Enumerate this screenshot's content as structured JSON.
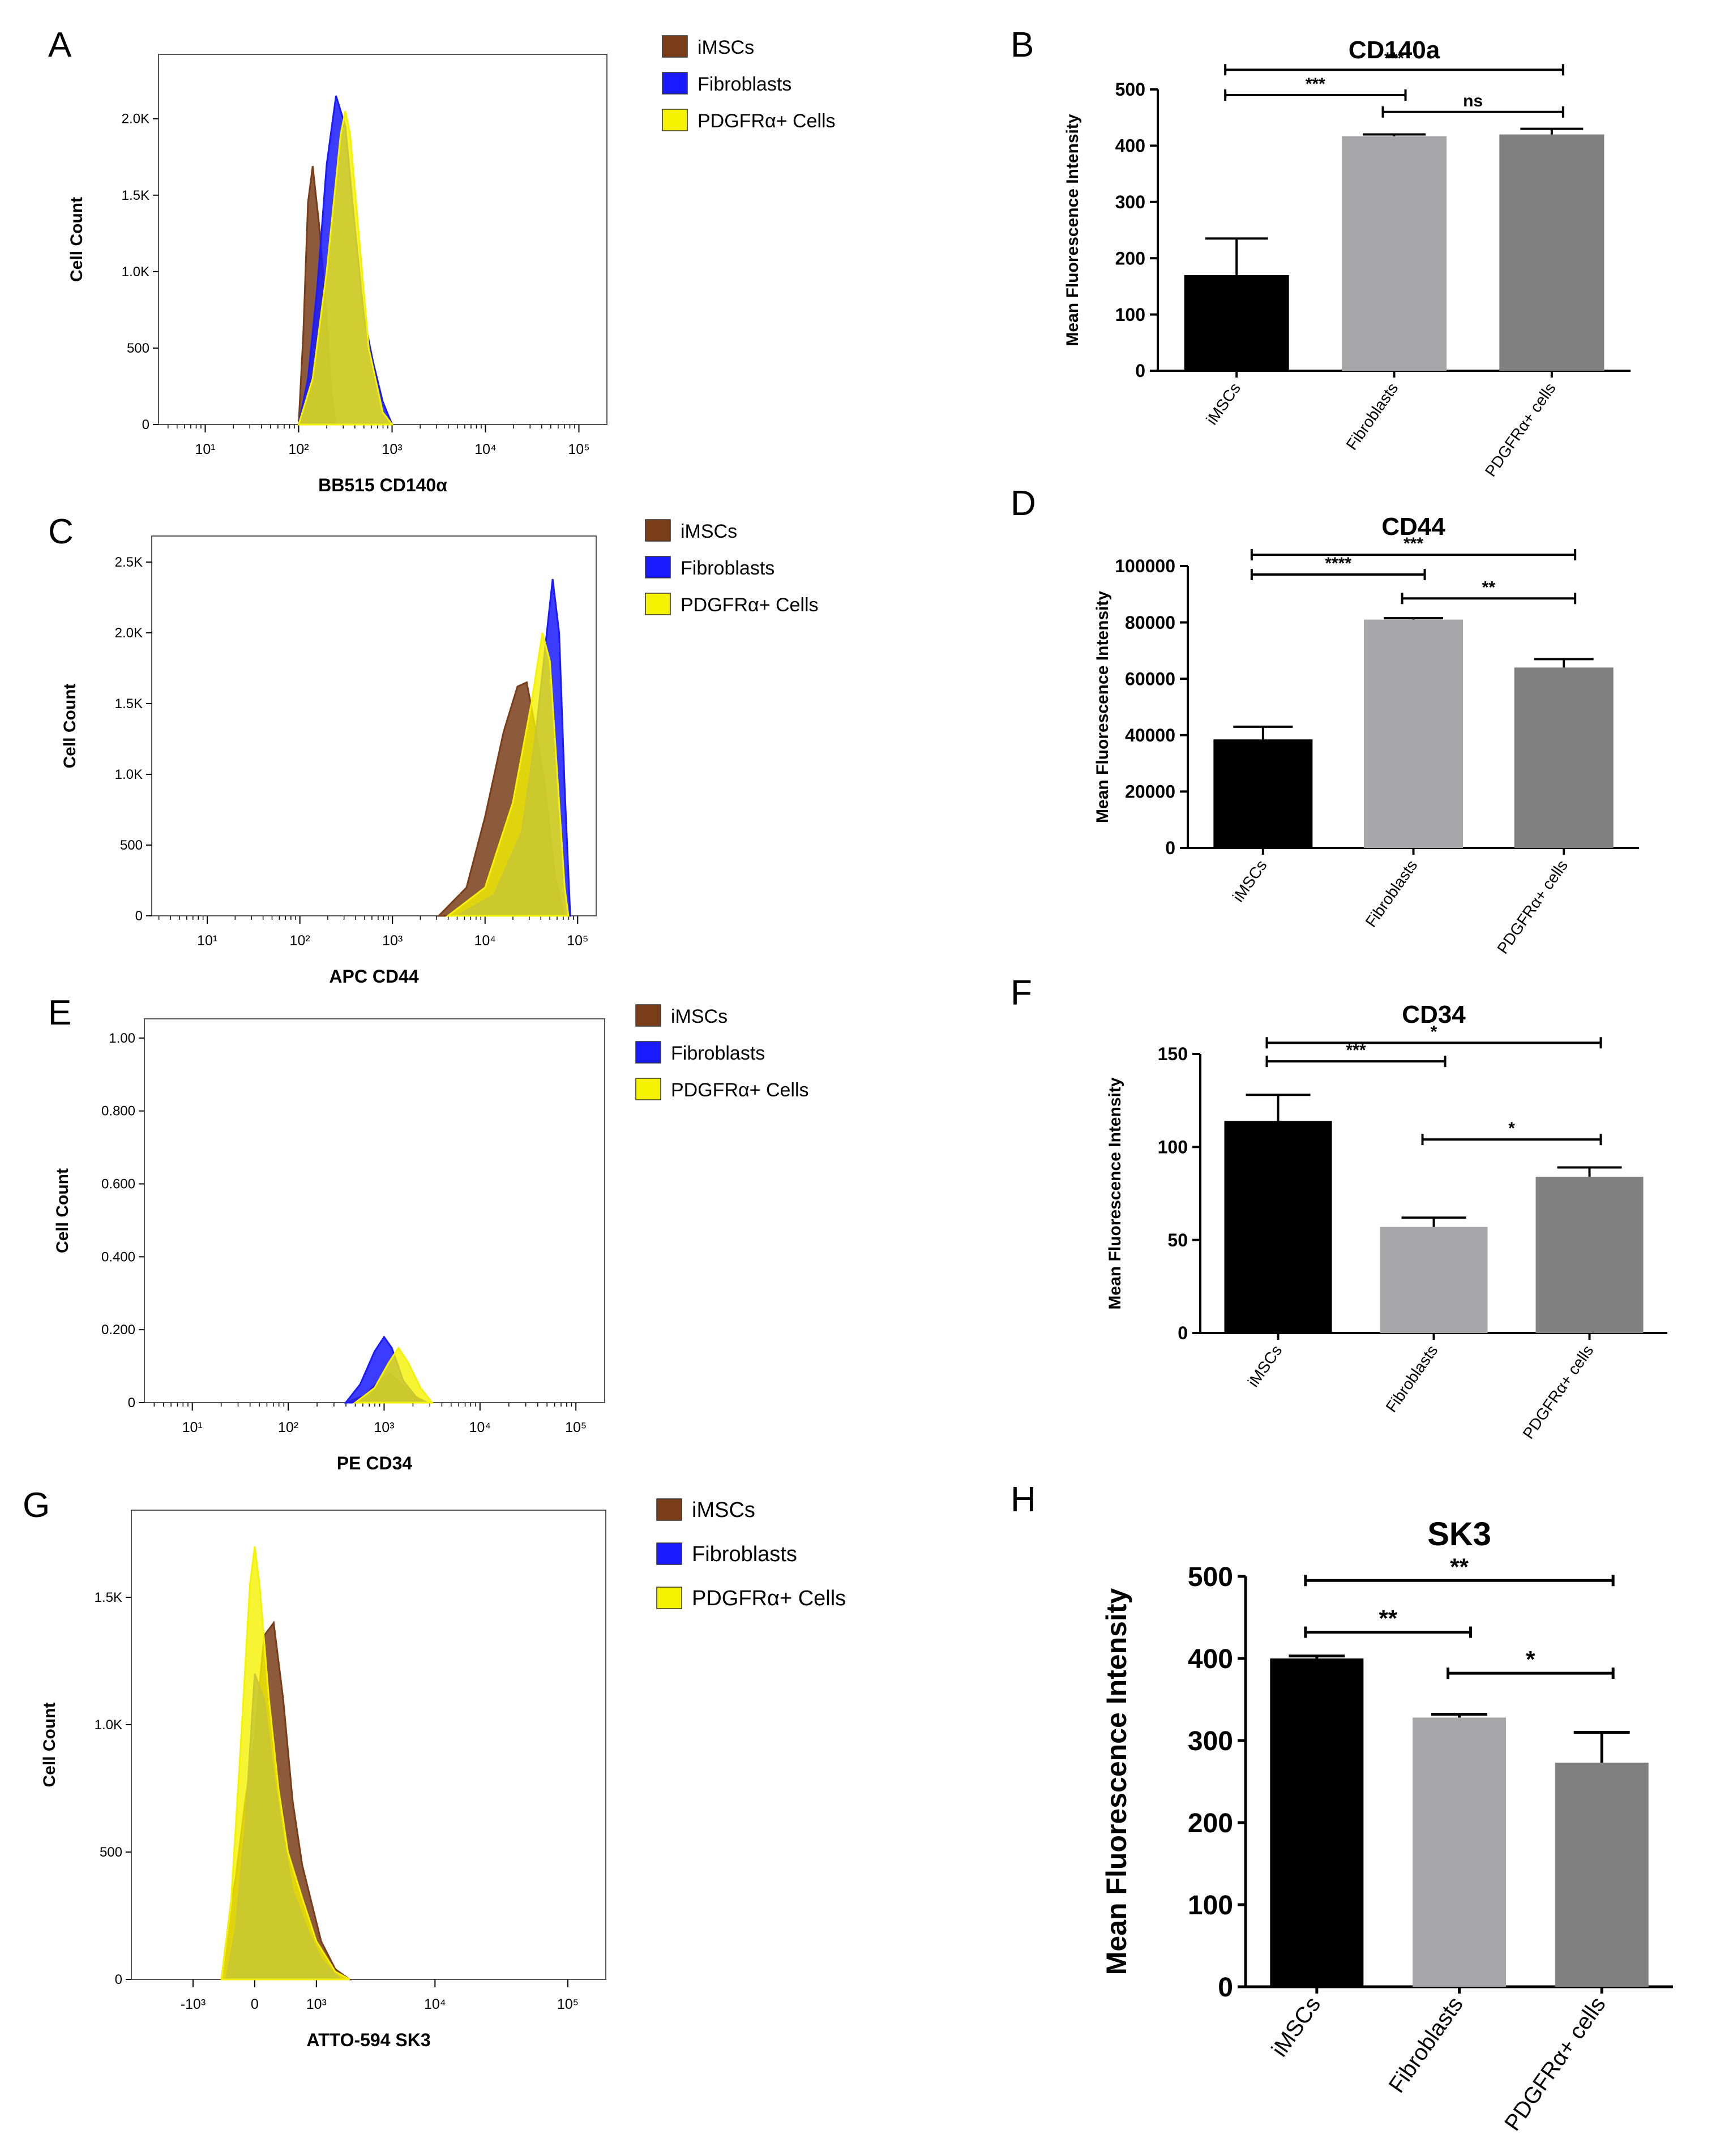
{
  "colors": {
    "imsc": "#7a3d1a",
    "fibro": "#1a1aff",
    "pdgfr": "#f5f200",
    "bar_imsc": "#000000",
    "bar_fibro": "#a7a7aa",
    "bar_pdgfr": "#808080"
  },
  "legend": [
    "iMSCs",
    "Fibroblasts",
    "PDGFRα+ Cells"
  ],
  "chart_data": [
    {
      "panel": "A",
      "type": "area",
      "ylabel": "Cell Count",
      "xlabel": "BB515 CD140α",
      "y_ticks": [
        "0",
        "500",
        "1.0K",
        "1.5K",
        "2.0K"
      ],
      "y_max": 2300,
      "x_ticks": [
        "10¹",
        "10²",
        "10³",
        "10⁴",
        "10⁵"
      ],
      "x_decades": [
        0.5,
        5.3
      ],
      "series": [
        {
          "name": "iMSCs",
          "points": [
            [
              2.0,
              0
            ],
            [
              2.05,
              600
            ],
            [
              2.1,
              1450
            ],
            [
              2.15,
              1690
            ],
            [
              2.22,
              1300
            ],
            [
              2.3,
              700
            ],
            [
              2.35,
              200
            ],
            [
              2.4,
              0
            ]
          ]
        },
        {
          "name": "Fibroblasts",
          "points": [
            [
              2.0,
              0
            ],
            [
              2.1,
              300
            ],
            [
              2.2,
              900
            ],
            [
              2.3,
              1700
            ],
            [
              2.4,
              2150
            ],
            [
              2.5,
              1950
            ],
            [
              2.6,
              1300
            ],
            [
              2.7,
              700
            ],
            [
              2.8,
              400
            ],
            [
              2.9,
              150
            ],
            [
              3.0,
              0
            ]
          ]
        },
        {
          "name": "PDGFRα+ Cells",
          "points": [
            [
              2.0,
              0
            ],
            [
              2.15,
              300
            ],
            [
              2.3,
              1000
            ],
            [
              2.45,
              1900
            ],
            [
              2.5,
              2050
            ],
            [
              2.55,
              1900
            ],
            [
              2.65,
              1200
            ],
            [
              2.75,
              500
            ],
            [
              2.9,
              80
            ],
            [
              3.0,
              0
            ]
          ]
        }
      ]
    },
    {
      "panel": "B",
      "type": "bar",
      "title": "CD140a",
      "ylabel": "Mean Fluorescence Intensity",
      "categories": [
        "iMSCs",
        "Fibroblasts",
        "PDGFRα+ cells"
      ],
      "values": [
        170,
        417,
        420
      ],
      "errors": [
        65,
        3,
        10
      ],
      "ylim": [
        0,
        500
      ],
      "y_step": 100,
      "sig": [
        {
          "from": 0,
          "to": 2,
          "label": "***",
          "y": 535
        },
        {
          "from": 0,
          "to": 1,
          "label": "***",
          "y": 490
        },
        {
          "from": 1,
          "to": 2,
          "label": "ns",
          "y": 460
        }
      ]
    },
    {
      "panel": "C",
      "type": "area",
      "ylabel": "Cell Count",
      "xlabel": "APC CD44",
      "y_ticks": [
        "0",
        "500",
        "1.0K",
        "1.5K",
        "2.0K",
        "2.5K"
      ],
      "y_max": 2550,
      "x_ticks": [
        "10¹",
        "10²",
        "10³",
        "10⁴",
        "10⁵"
      ],
      "x_decades": [
        0.4,
        5.2
      ],
      "series": [
        {
          "name": "iMSCs",
          "points": [
            [
              3.5,
              0
            ],
            [
              3.8,
              200
            ],
            [
              4.0,
              700
            ],
            [
              4.2,
              1300
            ],
            [
              4.35,
              1620
            ],
            [
              4.45,
              1650
            ],
            [
              4.55,
              1300
            ],
            [
              4.65,
              900
            ],
            [
              4.75,
              300
            ],
            [
              4.85,
              0
            ]
          ]
        },
        {
          "name": "Fibroblasts",
          "points": [
            [
              3.7,
              0
            ],
            [
              4.1,
              150
            ],
            [
              4.4,
              600
            ],
            [
              4.55,
              1300
            ],
            [
              4.65,
              1900
            ],
            [
              4.73,
              2380
            ],
            [
              4.8,
              2000
            ],
            [
              4.86,
              900
            ],
            [
              4.92,
              0
            ]
          ]
        },
        {
          "name": "PDGFRα+ Cells",
          "points": [
            [
              3.6,
              0
            ],
            [
              4.0,
              200
            ],
            [
              4.3,
              800
            ],
            [
              4.5,
              1500
            ],
            [
              4.62,
              2000
            ],
            [
              4.7,
              1800
            ],
            [
              4.78,
              1000
            ],
            [
              4.86,
              200
            ],
            [
              4.9,
              0
            ]
          ]
        }
      ]
    },
    {
      "panel": "D",
      "type": "bar",
      "title": "CD44",
      "ylabel": "Mean Fluorescence Intensity",
      "categories": [
        "iMSCs",
        "Fibroblasts",
        "PDGFRα+ cells"
      ],
      "values": [
        38500,
        81000,
        64000
      ],
      "errors": [
        4500,
        500,
        3000
      ],
      "ylim": [
        0,
        100000
      ],
      "y_step": 20000,
      "sig": [
        {
          "from": 0,
          "to": 2,
          "label": "***",
          "y": 104000
        },
        {
          "from": 0,
          "to": 1,
          "label": "****",
          "y": 97000
        },
        {
          "from": 1,
          "to": 2,
          "label": "**",
          "y": 88500
        }
      ]
    },
    {
      "panel": "E",
      "type": "area",
      "ylabel": "Cell Count",
      "xlabel": "PE CD34",
      "y_ticks": [
        "0",
        "0.200",
        "0.400",
        "0.600",
        "0.800",
        "1.00"
      ],
      "y_max": 1.0,
      "x_ticks": [
        "10¹",
        "10²",
        "10³",
        "10⁴",
        "10⁵"
      ],
      "x_decades": [
        0.5,
        5.3
      ],
      "series": [
        {
          "name": "iMSCs",
          "points": [
            [
              2.6,
              0
            ],
            [
              2.8,
              0.02
            ],
            [
              2.95,
              0.06
            ],
            [
              3.05,
              0.08
            ],
            [
              3.15,
              0.06
            ],
            [
              3.3,
              0.02
            ],
            [
              3.45,
              0
            ]
          ]
        },
        {
          "name": "Fibroblasts",
          "points": [
            [
              2.6,
              0
            ],
            [
              2.75,
              0.05
            ],
            [
              2.9,
              0.14
            ],
            [
              3.0,
              0.18
            ],
            [
              3.08,
              0.15
            ],
            [
              3.2,
              0.06
            ],
            [
              3.35,
              0.01
            ],
            [
              3.45,
              0
            ]
          ]
        },
        {
          "name": "PDGFRα+ Cells",
          "points": [
            [
              2.7,
              0
            ],
            [
              2.9,
              0.04
            ],
            [
              3.05,
              0.11
            ],
            [
              3.15,
              0.15
            ],
            [
              3.25,
              0.11
            ],
            [
              3.38,
              0.04
            ],
            [
              3.5,
              0
            ]
          ]
        }
      ]
    },
    {
      "panel": "F",
      "type": "bar",
      "title": "CD34",
      "ylabel": "Mean Fluorescence Intensity",
      "categories": [
        "iMSCs",
        "Fibroblasts",
        "PDGFRα+ cells"
      ],
      "values": [
        114,
        57,
        84
      ],
      "errors": [
        14,
        5,
        5
      ],
      "ylim": [
        0,
        150
      ],
      "y_step": 50,
      "sig": [
        {
          "from": 0,
          "to": 2,
          "label": "*",
          "y": 156
        },
        {
          "from": 0,
          "to": 1,
          "label": "***",
          "y": 146
        },
        {
          "from": 1,
          "to": 2,
          "label": "*",
          "y": 104
        }
      ]
    },
    {
      "panel": "G",
      "type": "area",
      "ylabel": "Cell Count",
      "xlabel": "ATTO-594 SK3",
      "y_ticks": [
        "0",
        "500",
        "1.0K",
        "1.5K"
      ],
      "y_max": 1750,
      "x_ticks": [
        "-10³",
        "0",
        "10³",
        "10⁴",
        "10⁵"
      ],
      "x_positions": [
        0.13,
        0.26,
        0.39,
        0.64,
        0.92
      ],
      "series": [
        {
          "name": "iMSCs",
          "points": [
            [
              0.19,
              0
            ],
            [
              0.21,
              300
            ],
            [
              0.22,
              400
            ],
            [
              0.24,
              700
            ],
            [
              0.26,
              950
            ],
            [
              0.28,
              1350
            ],
            [
              0.3,
              1400
            ],
            [
              0.32,
              1100
            ],
            [
              0.34,
              700
            ],
            [
              0.36,
              450
            ],
            [
              0.38,
              300
            ],
            [
              0.4,
              150
            ],
            [
              0.43,
              40
            ],
            [
              0.46,
              0
            ]
          ]
        },
        {
          "name": "Fibroblasts",
          "points": [
            [
              0.2,
              0
            ],
            [
              0.22,
              200
            ],
            [
              0.24,
              600
            ],
            [
              0.26,
              1200
            ],
            [
              0.28,
              1100
            ],
            [
              0.3,
              800
            ],
            [
              0.32,
              550
            ],
            [
              0.34,
              350
            ],
            [
              0.37,
              200
            ],
            [
              0.4,
              80
            ],
            [
              0.44,
              0
            ]
          ]
        },
        {
          "name": "PDGFRα+ Cells",
          "points": [
            [
              0.19,
              0
            ],
            [
              0.21,
              300
            ],
            [
              0.23,
              900
            ],
            [
              0.25,
              1550
            ],
            [
              0.26,
              1700
            ],
            [
              0.27,
              1550
            ],
            [
              0.29,
              1100
            ],
            [
              0.31,
              750
            ],
            [
              0.33,
              500
            ],
            [
              0.36,
              320
            ],
            [
              0.39,
              150
            ],
            [
              0.43,
              30
            ],
            [
              0.46,
              0
            ]
          ]
        }
      ]
    },
    {
      "panel": "H",
      "type": "bar",
      "title": "SK3",
      "ylabel": "Mean Fluorescence Intensity",
      "categories": [
        "iMSCs",
        "Fibroblasts",
        "PDGFRα+ cells"
      ],
      "values": [
        400,
        328,
        273
      ],
      "errors": [
        3,
        4,
        37
      ],
      "ylim": [
        0,
        500
      ],
      "y_step": 100,
      "sig": [
        {
          "from": 0,
          "to": 2,
          "label": "**",
          "y": 495
        },
        {
          "from": 0,
          "to": 1,
          "label": "**",
          "y": 432
        },
        {
          "from": 1,
          "to": 2,
          "label": "*",
          "y": 382
        }
      ]
    }
  ]
}
